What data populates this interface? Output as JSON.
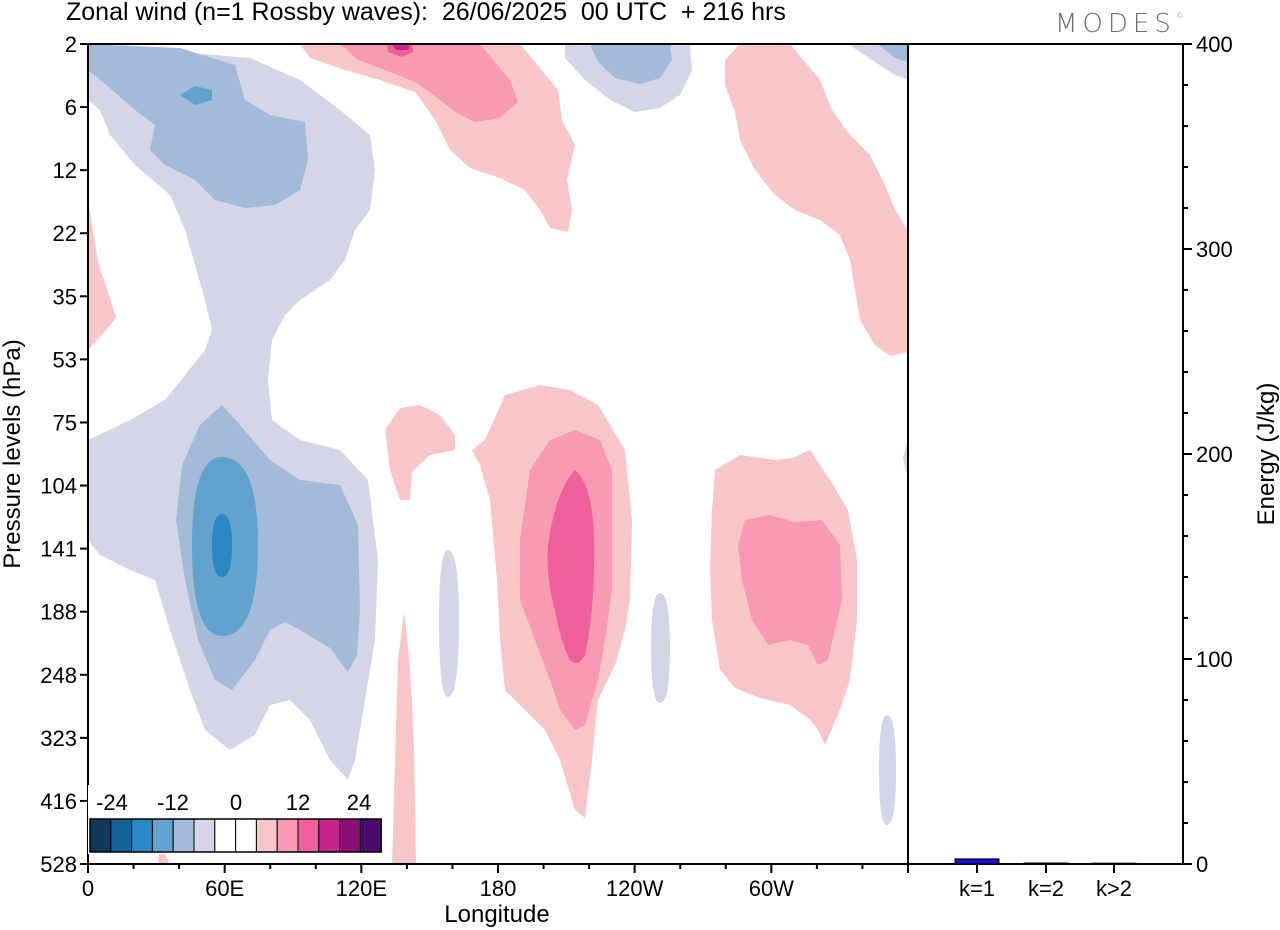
{
  "header": {
    "title": "Zonal wind (n=1 Rossby waves):  26/06/2025  00 UTC  + 216 hrs",
    "logo": "MODES"
  },
  "chart_data": [
    {
      "type": "heatmap",
      "title": "Zonal wind (n=1 Rossby waves):  26/06/2025  00 UTC  + 216 hrs",
      "xlabel": "Longitude",
      "ylabel": "Pressure levels (hPa)",
      "x_tick_labels": [
        "0",
        "60E",
        "120E",
        "180",
        "120W",
        "60W"
      ],
      "y_tick_labels": [
        "2",
        "6",
        "12",
        "22",
        "35",
        "53",
        "75",
        "104",
        "141",
        "188",
        "248",
        "323",
        "416",
        "528"
      ],
      "colorbar": {
        "labels": [
          "-24",
          "-12",
          "0",
          "12",
          "24"
        ],
        "colors": [
          "#0d3a5c",
          "#12639a",
          "#2c88c4",
          "#62a2cf",
          "#a3bad9",
          "#d5d5e8",
          "#ffffff",
          "#ffffff",
          "#f8c6c6",
          "#f79ab2",
          "#ef5f9c",
          "#c7258c",
          "#8a0f78",
          "#4a0a6e"
        ]
      },
      "contour_levels": {
        "neg_1": "#d5d5e8",
        "neg_2": "#a3bad9",
        "neg_3": "#62a2cf",
        "neg_4": "#2c88c4",
        "pos_1": "#f8c6c6",
        "pos_2": "#f79ab2",
        "pos_3": "#ef5f9c",
        "pos_4": "#c7258c"
      }
    },
    {
      "type": "bar",
      "ylabel": "Energy (J/kg)",
      "categories": [
        "k=1",
        "k=2",
        "k>2"
      ],
      "values": [
        2.5,
        0.5,
        0.4
      ],
      "ylim": [
        0,
        400
      ],
      "y_tick_labels": [
        "0",
        "100",
        "200",
        "300",
        "400"
      ],
      "bar_colors": [
        "#1414c8",
        "#1414c8",
        "#1414c8"
      ]
    }
  ]
}
